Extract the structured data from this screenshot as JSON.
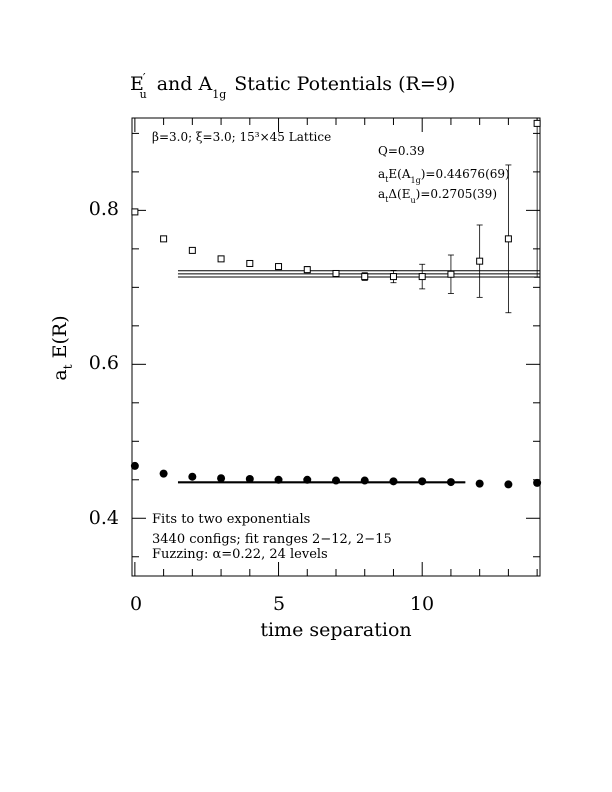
{
  "chart_data": {
    "type": "scatter",
    "title": "E′u  and A1g Static Potentials (R=9)",
    "title_parts": {
      "e_symbol": "E",
      "prime": "′",
      "e_sub": "u",
      "and": "and A",
      "a_sub": "1g",
      "rest": "Static Potentials (R=9)"
    },
    "xlabel": "time separation",
    "ylabel": "a",
    "ylabel_sub": "t",
    "ylabel_rest": " E(R)",
    "xlim": [
      -0.1,
      14.1
    ],
    "ylim": [
      0.325,
      0.92
    ],
    "x_ticks": [
      "0",
      "5",
      "10"
    ],
    "y_ticks": [
      "0.4",
      "0.6",
      "0.8"
    ],
    "annotations": {
      "lattice": "β=3.0; ξ=3.0; 15³×45 Lattice",
      "q": "Q=0.39",
      "energy_a1g": "a",
      "energy_a1g_text": "E(A",
      "energy_a1g_sub": "1g",
      "energy_a1g_value": ")=0.44676(69)",
      "energy_eu": "a",
      "energy_eu_text": "Δ(E",
      "energy_eu_sub": "u",
      "energy_eu_value": ")=0.2705(39)",
      "fits": "Fits to two exponentials",
      "configs": "3440 configs; fit ranges 2−12, 2−15",
      "fuzzing": "Fuzzing: α=0.22, 24 levels"
    },
    "series": [
      {
        "marker": "open-square",
        "x": [
          0,
          1,
          2,
          3,
          4,
          5,
          6,
          7,
          8,
          9,
          10,
          11,
          12,
          13,
          14
        ],
        "y": [
          0.798,
          0.763,
          0.748,
          0.737,
          0.731,
          0.727,
          0.723,
          0.718,
          0.714,
          0.714,
          0.714,
          0.717,
          0.734,
          0.763,
          0.913
        ],
        "err": [
          0.002,
          0.002,
          0.002,
          0.003,
          0.003,
          0.003,
          0.004,
          0.004,
          0.005,
          0.008,
          0.016,
          0.025,
          0.047,
          0.096,
          0.2
        ]
      },
      {
        "marker": "filled-circle",
        "x": [
          0,
          1,
          2,
          3,
          4,
          5,
          6,
          7,
          8,
          9,
          10,
          11,
          12,
          13,
          14
        ],
        "y": [
          0.468,
          0.458,
          0.454,
          0.452,
          0.451,
          0.45,
          0.45,
          0.449,
          0.449,
          0.448,
          0.448,
          0.447,
          0.445,
          0.444,
          0.446
        ],
        "err": [
          0.001,
          0.001,
          0.001,
          0.001,
          0.001,
          0.001,
          0.001,
          0.001,
          0.001,
          0.001,
          0.001,
          0.001,
          0.001,
          0.002,
          0.003
        ]
      }
    ],
    "fits": [
      {
        "x_range": [
          1.5,
          14.1
        ],
        "value": 0.7175,
        "err": 0.004
      },
      {
        "x_range": [
          1.5,
          11.5
        ],
        "value": 0.44676,
        "err": 0.0007
      }
    ]
  }
}
